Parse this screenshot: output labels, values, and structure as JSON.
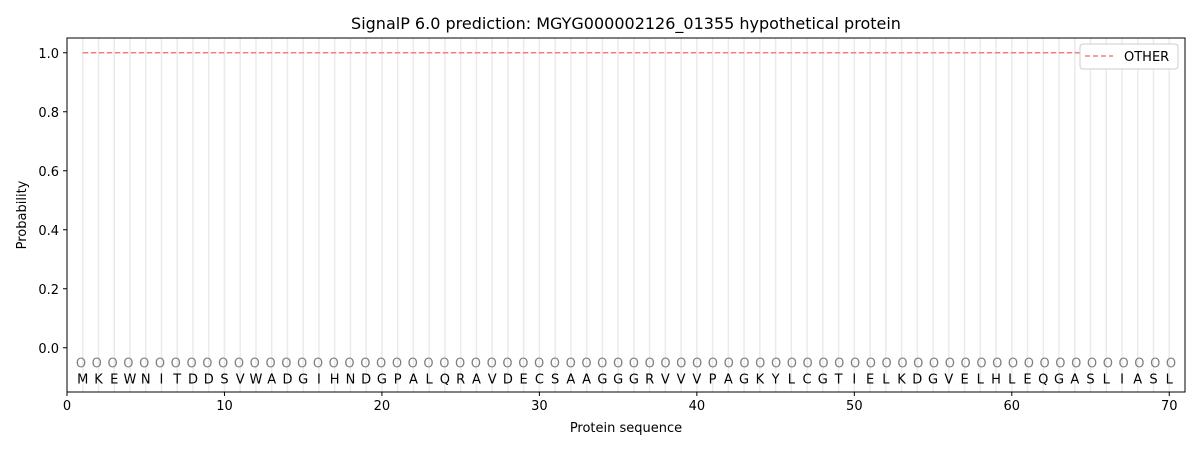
{
  "chart_data": {
    "type": "line",
    "title": "SignalP 6.0 prediction: MGYG000002126_01355 hypothetical protein",
    "xlabel": "Protein sequence",
    "ylabel": "Probability",
    "xlim": [
      0,
      71
    ],
    "ylim": [
      -0.15,
      1.05
    ],
    "xticks": [
      0,
      10,
      20,
      30,
      40,
      50,
      60,
      70
    ],
    "yticks": [
      0.0,
      0.2,
      0.4,
      0.6,
      0.8,
      1.0
    ],
    "ytick_labels": [
      "0.0",
      "0.2",
      "0.4",
      "0.6",
      "0.8",
      "1.0"
    ],
    "grid": "vertical lines at each residue",
    "legend_position": "top-right",
    "sequence": [
      "M",
      "K",
      "E",
      "W",
      "N",
      "I",
      "T",
      "D",
      "D",
      "S",
      "V",
      "W",
      "A",
      "D",
      "G",
      "I",
      "H",
      "N",
      "D",
      "G",
      "P",
      "A",
      "L",
      "Q",
      "R",
      "A",
      "V",
      "D",
      "E",
      "C",
      "S",
      "A",
      "A",
      "G",
      "G",
      "G",
      "R",
      "V",
      "V",
      "V",
      "P",
      "A",
      "G",
      "K",
      "Y",
      "L",
      "C",
      "G",
      "T",
      "I",
      "E",
      "L",
      "K",
      "D",
      "G",
      "V",
      "E",
      "L",
      "H",
      "L",
      "E",
      "Q",
      "G",
      "A",
      "S",
      "L",
      "I",
      "A",
      "S",
      "L"
    ],
    "predicted_labels": "OOOOOOOOOOOOOOOOOOOOOOOOOOOOOOOOOOOOOOOOOOOOOOOOOOOOOOOOOOOOOOOOOOOOOO",
    "series": [
      {
        "name": "OTHER",
        "color": "#f08080",
        "style": "dashed",
        "x_range": [
          1,
          70
        ],
        "value": 1.0
      }
    ]
  }
}
